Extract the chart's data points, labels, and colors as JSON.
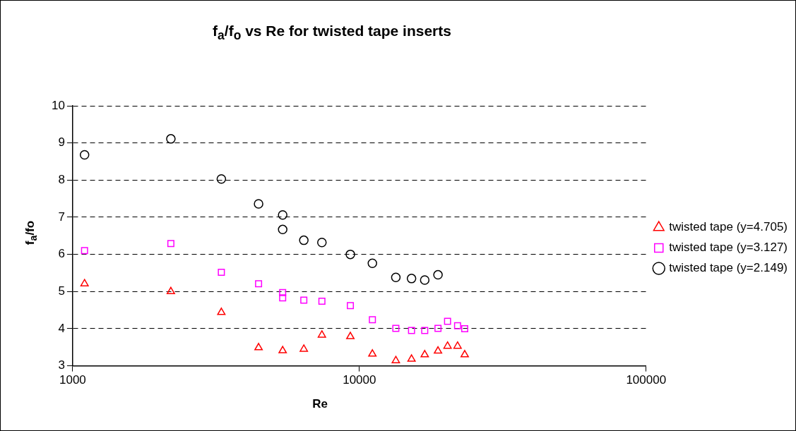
{
  "chart_data": {
    "type": "scatter",
    "title": "f$_{a}$/f$_{o}$ vs Re for twisted tape inserts",
    "xlabel": "Re",
    "ylabel": "f$_{a}$/fo",
    "log": "x",
    "xlim": [
      1000,
      100000
    ],
    "xticks": [
      1000,
      10000,
      100000
    ],
    "ylim": [
      3,
      10
    ],
    "yticks": [
      3,
      4,
      5,
      6,
      7,
      8,
      9,
      10
    ],
    "grid": "y",
    "legend": "right",
    "series": [
      {
        "name": "twisted tape (y=4.705)",
        "color": "#ff0000",
        "marker": "triangle",
        "x": [
          1100,
          2200,
          3300,
          4450,
          5400,
          6400,
          7400,
          9300,
          11100,
          13400,
          15200,
          16900,
          18800,
          20300,
          22000,
          23300
        ],
        "values": [
          5.21,
          5.0,
          4.44,
          3.49,
          3.41,
          3.45,
          3.83,
          3.79,
          3.32,
          3.14,
          3.18,
          3.3,
          3.4,
          3.53,
          3.53,
          3.3
        ]
      },
      {
        "name": "twisted tape (y=3.127)",
        "color": "#ff00ff",
        "marker": "square",
        "x": [
          1100,
          2200,
          3300,
          4450,
          5400,
          5400,
          6400,
          7400,
          9300,
          11100,
          13400,
          15200,
          16900,
          18800,
          20300,
          22000,
          23300
        ],
        "values": [
          6.1,
          6.29,
          5.52,
          5.21,
          4.97,
          4.83,
          4.77,
          4.74,
          4.62,
          4.24,
          4.01,
          3.95,
          3.95,
          4.01,
          4.2,
          4.08,
          4.0
        ]
      },
      {
        "name": "twisted tape (y=2.149)",
        "color": "#000000",
        "marker": "circle",
        "x": [
          1100,
          2200,
          3300,
          4450,
          5400,
          5400,
          6400,
          7400,
          9300,
          11100,
          13400,
          15200,
          16900,
          18800
        ],
        "values": [
          8.68,
          9.11,
          8.03,
          7.36,
          7.06,
          6.67,
          6.38,
          6.32,
          6.0,
          5.76,
          5.38,
          5.35,
          5.31,
          5.45
        ]
      }
    ]
  }
}
